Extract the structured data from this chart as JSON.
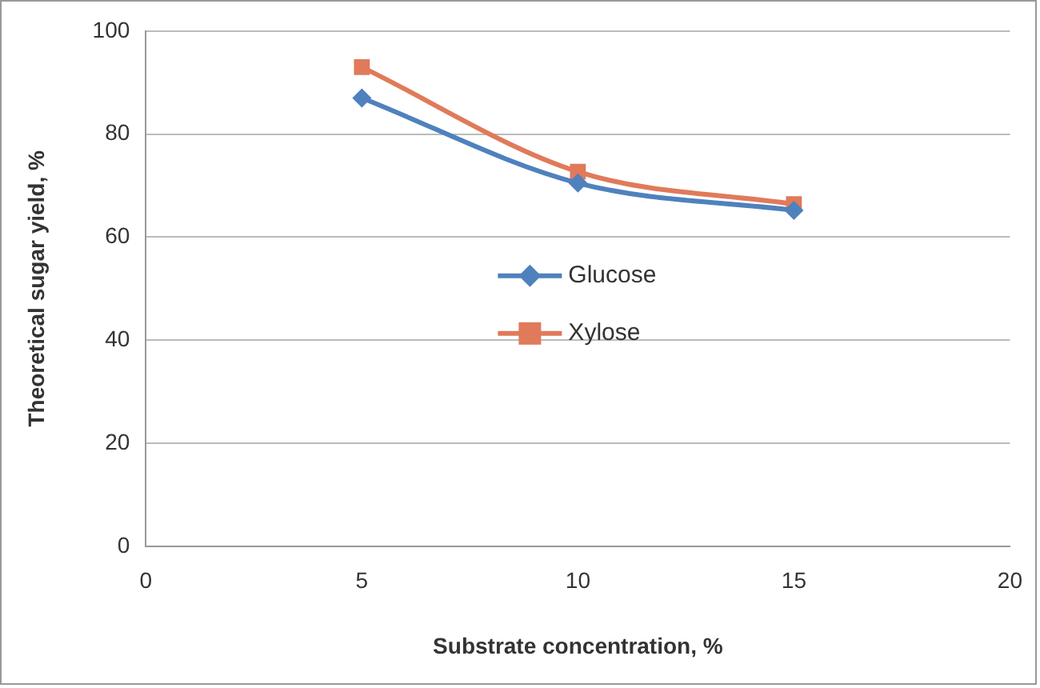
{
  "chart_data": {
    "type": "line",
    "xlabel": "Substrate concentration, %",
    "ylabel": "Theoretical sugar yield, %",
    "x": [
      5,
      10,
      15
    ],
    "series": [
      {
        "name": "Glucose",
        "color": "#4f81bd",
        "marker": "diamond",
        "values": [
          87,
          70.5,
          65.2
        ]
      },
      {
        "name": "Xylose",
        "color": "#e07a5a",
        "marker": "square",
        "values": [
          93,
          72.7,
          66.4
        ]
      }
    ],
    "xlim": [
      0,
      20
    ],
    "xticks": [
      0,
      5,
      10,
      15,
      20
    ],
    "ylim": [
      0,
      100
    ],
    "yticks": [
      0,
      20,
      40,
      60,
      80,
      100
    ],
    "grid": "y",
    "legend": "center"
  }
}
